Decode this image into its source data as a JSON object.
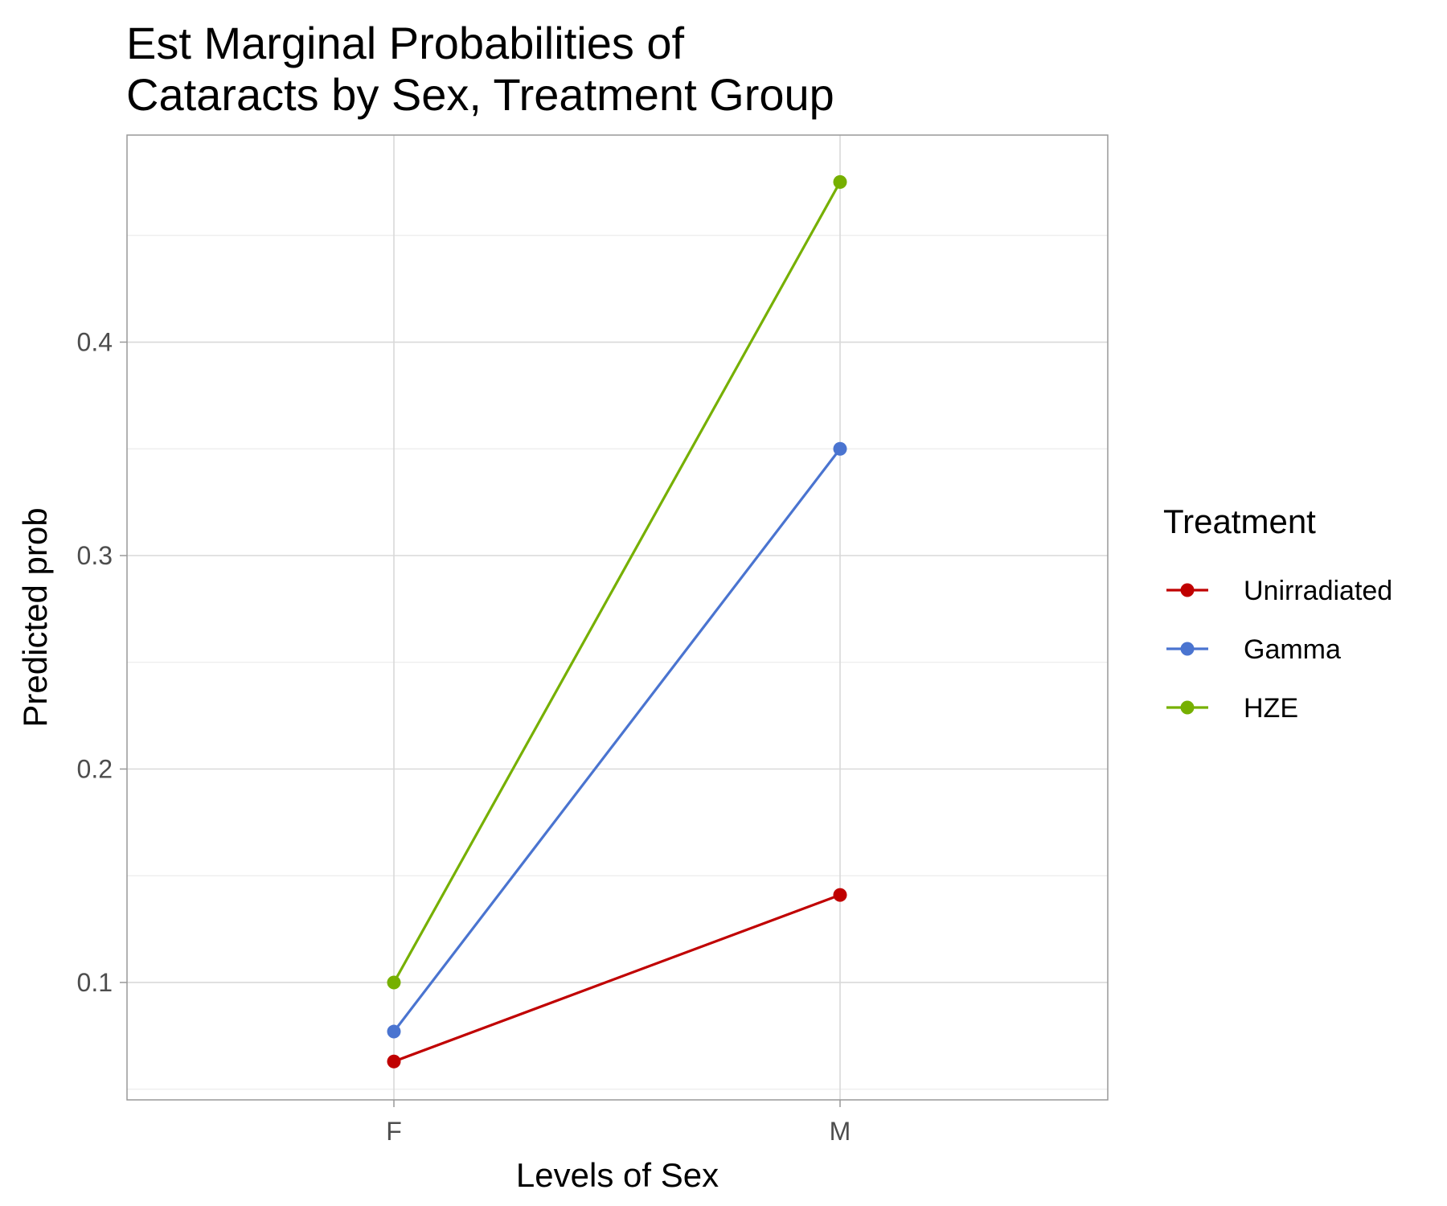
{
  "chart_data": {
    "type": "line",
    "title_lines": [
      "Est Marginal Probabilities of",
      "Cataracts by Sex, Treatment Group"
    ],
    "xlabel": "Levels of Sex",
    "ylabel": "Predicted prob",
    "categories": [
      "F",
      "M"
    ],
    "yticks": [
      0.1,
      0.2,
      0.3,
      0.4
    ],
    "ytick_labels": [
      "0.1",
      "0.2",
      "0.3",
      "0.4"
    ],
    "ylim": [
      0.045,
      0.497
    ],
    "grid": true,
    "legend": {
      "title": "Treatment",
      "placement": "right"
    },
    "series": [
      {
        "name": "Unirradiated",
        "color": "#c00000",
        "values": [
          0.063,
          0.141
        ]
      },
      {
        "name": "Gamma",
        "color": "#4a74d0",
        "values": [
          0.077,
          0.35
        ]
      },
      {
        "name": "HZE",
        "color": "#76b000",
        "values": [
          0.1,
          0.475
        ]
      }
    ]
  }
}
